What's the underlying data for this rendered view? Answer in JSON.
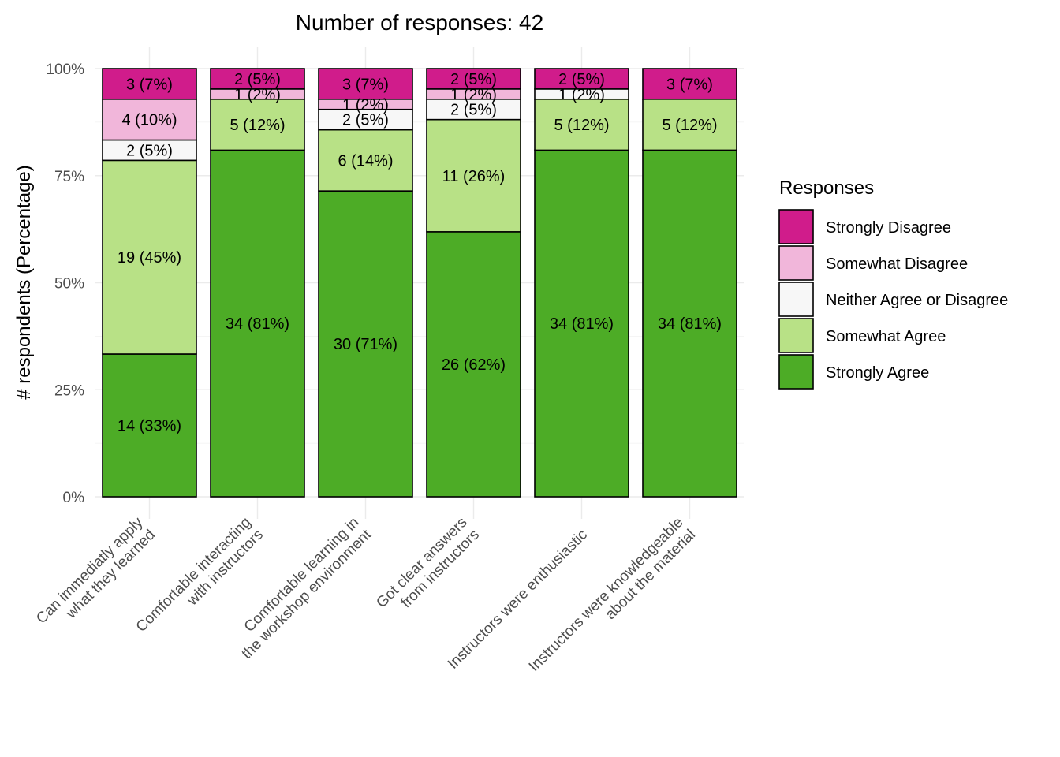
{
  "chart_data": {
    "type": "bar",
    "stacked": true,
    "orientation": "vertical",
    "title": "Number of responses: 42",
    "xlabel": "",
    "ylabel": "# respondents (Percentage)",
    "ylim": [
      0,
      100
    ],
    "yticks": [
      0,
      25,
      50,
      75,
      100
    ],
    "ytick_labels": [
      "0%",
      "25%",
      "50%",
      "75%",
      "100%"
    ],
    "grid": true,
    "legend": {
      "title": "Responses",
      "position": "right"
    },
    "categories": [
      [
        "Can immediatly apply",
        "what they learned"
      ],
      [
        "Comfortable interacting",
        "with instructors"
      ],
      [
        "Comfortable learning in",
        "the workshop environment"
      ],
      [
        "Got clear answers",
        "from instructors"
      ],
      [
        "Instructors were enthusiastic"
      ],
      [
        "Instructors were knowledgeable",
        "about the material"
      ]
    ],
    "series": [
      {
        "name": "Strongly Agree",
        "color": "#4dac26",
        "counts": [
          14,
          34,
          30,
          26,
          34,
          34
        ],
        "labels": [
          "14 (33%)",
          "34 (81%)",
          "30 (71%)",
          "26 (62%)",
          "34 (81%)",
          "34 (81%)"
        ]
      },
      {
        "name": "Somewhat Agree",
        "color": "#b8e186",
        "counts": [
          19,
          5,
          6,
          11,
          5,
          5
        ],
        "labels": [
          "19 (45%)",
          "5 (12%)",
          "6 (14%)",
          "11 (26%)",
          "5 (12%)",
          "5 (12%)"
        ]
      },
      {
        "name": "Neither Agree or Disagree",
        "color": "#f7f7f7",
        "counts": [
          2,
          0,
          2,
          2,
          1,
          0
        ],
        "labels": [
          "2 (5%)",
          "",
          "2 (5%)",
          "2 (5%)",
          "1 (2%)",
          ""
        ]
      },
      {
        "name": "Somewhat Disagree",
        "color": "#f1b6da",
        "counts": [
          4,
          1,
          1,
          1,
          0,
          0
        ],
        "labels": [
          "4 (10%)",
          "1 (2%)",
          "1 (2%)",
          "1 (2%)",
          "",
          ""
        ]
      },
      {
        "name": "Strongly Disagree",
        "color": "#d01c8b",
        "counts": [
          3,
          2,
          3,
          2,
          2,
          3
        ],
        "labels": [
          "3 (7%)",
          "2 (5%)",
          "3 (7%)",
          "2 (5%)",
          "2 (5%)",
          "3 (7%)"
        ]
      }
    ],
    "total": 42
  }
}
